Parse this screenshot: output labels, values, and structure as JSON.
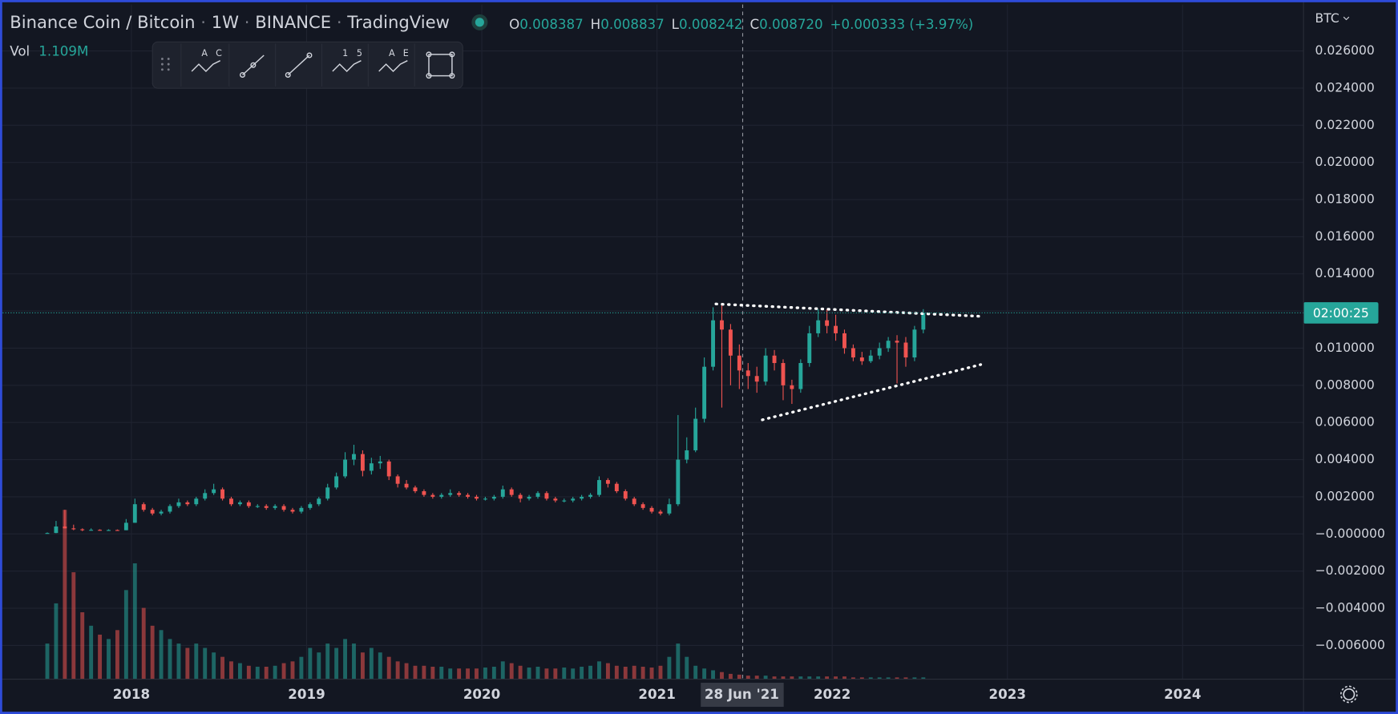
{
  "header": {
    "symbol": "Binance Coin / Bitcoin",
    "interval": "1W",
    "exchange": "BINANCE",
    "source": "TradingView",
    "ohlc": [
      {
        "key": "O",
        "value": "0.008387"
      },
      {
        "key": "H",
        "value": "0.008837"
      },
      {
        "key": "L",
        "value": "0.008242"
      },
      {
        "key": "C",
        "value": "0.008720"
      }
    ],
    "change": "+0.000333 (+3.97%)",
    "currency": "BTC"
  },
  "toolbar_labels": [
    "A",
    "C",
    "1",
    "5",
    "A",
    "E"
  ],
  "crosshair_label": "28 Jun '21",
  "chart_data": {
    "type": "candlestick",
    "up_color": "#26a69a",
    "down_color": "#ef5350",
    "xlim": [
      2017.25,
      2024.69
    ],
    "xticks": [
      2018,
      2019,
      2020,
      2021,
      2022,
      2023,
      2024
    ],
    "ylim": [
      -0.00782,
      0.0285
    ],
    "yticks": [
      {
        "value": 0.026,
        "label": "0.026000"
      },
      {
        "value": 0.024,
        "label": "0.024000"
      },
      {
        "value": 0.022,
        "label": "0.022000"
      },
      {
        "value": 0.02,
        "label": "0.020000"
      },
      {
        "value": 0.018,
        "label": "0.018000"
      },
      {
        "value": 0.016,
        "label": "0.016000"
      },
      {
        "value": 0.014,
        "label": "0.014000"
      },
      {
        "value": 0.012,
        "label": "0.012000"
      },
      {
        "value": 0.01,
        "label": "0.010000"
      },
      {
        "value": 0.008,
        "label": "0.008000"
      },
      {
        "value": 0.006,
        "label": "0.006000"
      },
      {
        "value": 0.004,
        "label": "0.004000"
      },
      {
        "value": 0.002,
        "label": "0.002000"
      },
      {
        "value": 0,
        "label": "−0.000000"
      },
      {
        "value": -0.002,
        "label": "−0.002000"
      },
      {
        "value": -0.004,
        "label": "−0.004000"
      },
      {
        "value": -0.006,
        "label": "−0.006000"
      }
    ],
    "grid": true,
    "price_tag": "02:00:25",
    "volume_name": "Vol",
    "volume_value_label": "1.109M",
    "x": [
      2017.52,
      2017.57,
      2017.62,
      2017.67,
      2017.72,
      2017.77,
      2017.82,
      2017.87,
      2017.92,
      2017.97,
      2018.02,
      2018.07,
      2018.12,
      2018.17,
      2018.22,
      2018.27,
      2018.32,
      2018.37,
      2018.42,
      2018.47,
      2018.52,
      2018.57,
      2018.62,
      2018.67,
      2018.72,
      2018.77,
      2018.82,
      2018.87,
      2018.92,
      2018.97,
      2019.02,
      2019.07,
      2019.12,
      2019.17,
      2019.22,
      2019.27,
      2019.32,
      2019.37,
      2019.42,
      2019.47,
      2019.52,
      2019.57,
      2019.62,
      2019.67,
      2019.72,
      2019.77,
      2019.82,
      2019.87,
      2019.92,
      2019.97,
      2020.02,
      2020.07,
      2020.12,
      2020.17,
      2020.22,
      2020.27,
      2020.32,
      2020.37,
      2020.42,
      2020.47,
      2020.52,
      2020.57,
      2020.62,
      2020.67,
      2020.72,
      2020.77,
      2020.82,
      2020.87,
      2020.92,
      2020.97,
      2021.02,
      2021.07,
      2021.12,
      2021.17,
      2021.22,
      2021.27,
      2021.32,
      2021.37,
      2021.42,
      2021.47,
      2021.52,
      2021.57,
      2021.62,
      2021.67,
      2021.72,
      2021.77,
      2021.82,
      2021.87,
      2021.92,
      2021.97,
      2022.02,
      2022.07,
      2022.12,
      2022.17,
      2022.22,
      2022.27,
      2022.32,
      2022.37,
      2022.42,
      2022.47,
      2022.52
    ],
    "open": [
      3e-05,
      5e-05,
      0.0004,
      0.0003,
      0.00025,
      0.0002,
      0.00022,
      0.0002,
      0.00021,
      0.0002,
      0.0006,
      0.0016,
      0.0013,
      0.0011,
      0.0012,
      0.0015,
      0.0017,
      0.0016,
      0.0019,
      0.0022,
      0.0024,
      0.0019,
      0.0016,
      0.0017,
      0.0015,
      0.0015,
      0.0014,
      0.0015,
      0.0013,
      0.0012,
      0.0014,
      0.0016,
      0.0019,
      0.0025,
      0.0031,
      0.004,
      0.0043,
      0.0034,
      0.0038,
      0.0039,
      0.0031,
      0.0027,
      0.0025,
      0.0023,
      0.0021,
      0.002,
      0.0021,
      0.0022,
      0.0021,
      0.002,
      0.0019,
      0.0019,
      0.002,
      0.0024,
      0.0021,
      0.0019,
      0.002,
      0.0022,
      0.0019,
      0.0018,
      0.0018,
      0.0019,
      0.002,
      0.0021,
      0.0029,
      0.0027,
      0.0023,
      0.0019,
      0.0016,
      0.0014,
      0.0012,
      0.0011,
      0.0016,
      0.004,
      0.0045,
      0.0062,
      0.009,
      0.0115,
      0.011,
      0.0096,
      0.0088,
      0.0085,
      0.0082,
      0.0096,
      0.0092,
      0.008,
      0.0078,
      0.0092,
      0.0108,
      0.0115,
      0.0112,
      0.0108,
      0.01,
      0.0095,
      0.0093,
      0.0096,
      0.01,
      0.0104,
      0.0103,
      0.0095,
      0.011
    ],
    "high": [
      8e-05,
      0.0007,
      0.0013,
      0.0005,
      0.0003,
      0.0003,
      0.00025,
      0.00025,
      0.00024,
      0.0008,
      0.0019,
      0.0017,
      0.0014,
      0.0013,
      0.0016,
      0.0019,
      0.0018,
      0.002,
      0.0024,
      0.0027,
      0.0025,
      0.002,
      0.0018,
      0.0018,
      0.0016,
      0.0016,
      0.0016,
      0.0016,
      0.0014,
      0.0015,
      0.0017,
      0.002,
      0.0027,
      0.0033,
      0.0044,
      0.0048,
      0.0045,
      0.0041,
      0.0042,
      0.004,
      0.0032,
      0.0029,
      0.0026,
      0.0024,
      0.0022,
      0.0022,
      0.0024,
      0.0023,
      0.0022,
      0.0021,
      0.002,
      0.0021,
      0.0026,
      0.0025,
      0.0022,
      0.0021,
      0.0023,
      0.0023,
      0.002,
      0.0019,
      0.002,
      0.0021,
      0.0022,
      0.0031,
      0.003,
      0.0028,
      0.0024,
      0.002,
      0.0017,
      0.0015,
      0.0013,
      0.0019,
      0.0064,
      0.0052,
      0.0068,
      0.0095,
      0.0122,
      0.0124,
      0.0113,
      0.0102,
      0.0092,
      0.009,
      0.01,
      0.0099,
      0.0094,
      0.0083,
      0.0094,
      0.0112,
      0.0121,
      0.0121,
      0.0118,
      0.011,
      0.0102,
      0.0098,
      0.0099,
      0.0103,
      0.0106,
      0.0107,
      0.0106,
      0.0112,
      0.0121
    ],
    "low": [
      2e-05,
      4e-05,
      0.0003,
      0.0002,
      0.00015,
      0.00018,
      0.00017,
      0.00018,
      0.00017,
      0.0002,
      0.0006,
      0.0012,
      0.001,
      0.001,
      0.0011,
      0.0014,
      0.0015,
      0.0015,
      0.0018,
      0.0021,
      0.0018,
      0.0015,
      0.0015,
      0.0014,
      0.0014,
      0.0013,
      0.0013,
      0.0012,
      0.0011,
      0.0011,
      0.0013,
      0.0015,
      0.0018,
      0.0024,
      0.003,
      0.0037,
      0.0031,
      0.0032,
      0.0035,
      0.0029,
      0.0025,
      0.0024,
      0.0022,
      0.002,
      0.0019,
      0.0019,
      0.002,
      0.002,
      0.0019,
      0.0018,
      0.0018,
      0.0018,
      0.0019,
      0.002,
      0.0017,
      0.0018,
      0.0019,
      0.0018,
      0.0017,
      0.0017,
      0.0017,
      0.0018,
      0.0019,
      0.002,
      0.0025,
      0.0022,
      0.0018,
      0.0015,
      0.0013,
      0.0011,
      0.001,
      0.001,
      0.0015,
      0.0038,
      0.0044,
      0.006,
      0.0088,
      0.0068,
      0.008,
      0.0078,
      0.0078,
      0.0076,
      0.008,
      0.0088,
      0.0072,
      0.007,
      0.0076,
      0.009,
      0.0106,
      0.0108,
      0.0104,
      0.0097,
      0.0093,
      0.0091,
      0.0092,
      0.0094,
      0.0098,
      0.0081,
      0.009,
      0.0093,
      0.0108
    ],
    "close": [
      5e-05,
      0.0004,
      0.0003,
      0.00025,
      0.0002,
      0.00022,
      0.0002,
      0.00021,
      0.0002,
      0.0006,
      0.0016,
      0.0013,
      0.0011,
      0.0012,
      0.0015,
      0.0017,
      0.0016,
      0.0019,
      0.0022,
      0.0024,
      0.0019,
      0.0016,
      0.0017,
      0.0015,
      0.0015,
      0.0014,
      0.0015,
      0.0013,
      0.0012,
      0.0014,
      0.0016,
      0.0019,
      0.0025,
      0.0031,
      0.004,
      0.0043,
      0.0034,
      0.0038,
      0.0039,
      0.0031,
      0.0027,
      0.0025,
      0.0023,
      0.0021,
      0.002,
      0.0021,
      0.0022,
      0.0021,
      0.002,
      0.0019,
      0.0019,
      0.002,
      0.0024,
      0.0021,
      0.0019,
      0.002,
      0.0022,
      0.0019,
      0.0018,
      0.0018,
      0.0019,
      0.002,
      0.0021,
      0.0029,
      0.0027,
      0.0023,
      0.0019,
      0.0016,
      0.0014,
      0.0012,
      0.0011,
      0.0016,
      0.004,
      0.0045,
      0.0062,
      0.009,
      0.0115,
      0.011,
      0.0096,
      0.0088,
      0.0085,
      0.0082,
      0.0096,
      0.0092,
      0.008,
      0.0078,
      0.0092,
      0.0108,
      0.0115,
      0.0112,
      0.0108,
      0.01,
      0.0095,
      0.0093,
      0.0096,
      0.01,
      0.0104,
      0.0103,
      0.0095,
      0.011,
      0.0119
    ],
    "volume": [
      22,
      46.8,
      104.5,
      66,
      41.3,
      33,
      27.5,
      24.8,
      30.3,
      55,
      71.5,
      44,
      33,
      30.3,
      24.8,
      22,
      19.3,
      22,
      19.3,
      16.5,
      13.8,
      11,
      9.9,
      8.3,
      7.7,
      7.7,
      8.3,
      9.9,
      11,
      13.8,
      19.3,
      16.5,
      22,
      19.3,
      24.8,
      22,
      16.5,
      19.3,
      16.5,
      13.8,
      11,
      9.9,
      8.3,
      8.3,
      7.7,
      7.7,
      6.6,
      6.6,
      6.6,
      6.6,
      7.2,
      7.7,
      11,
      9.9,
      8.3,
      7.2,
      7.7,
      6.6,
      6.6,
      7.2,
      6.6,
      7.7,
      8.3,
      11,
      9.9,
      8.3,
      7.7,
      8.3,
      7.7,
      7.2,
      8.3,
      13.8,
      22,
      13.8,
      8.3,
      6.6,
      5.5,
      4.4,
      3.3,
      2.8,
      2.2,
      2.2,
      2.2,
      1.7,
      1.7,
      1.7,
      1.7,
      1.7,
      1.7,
      1.7,
      1.7,
      1.7,
      1.1,
      1.1,
      1.1,
      1.1,
      1.1,
      1.1,
      1.1,
      1.1,
      1.109
    ]
  }
}
